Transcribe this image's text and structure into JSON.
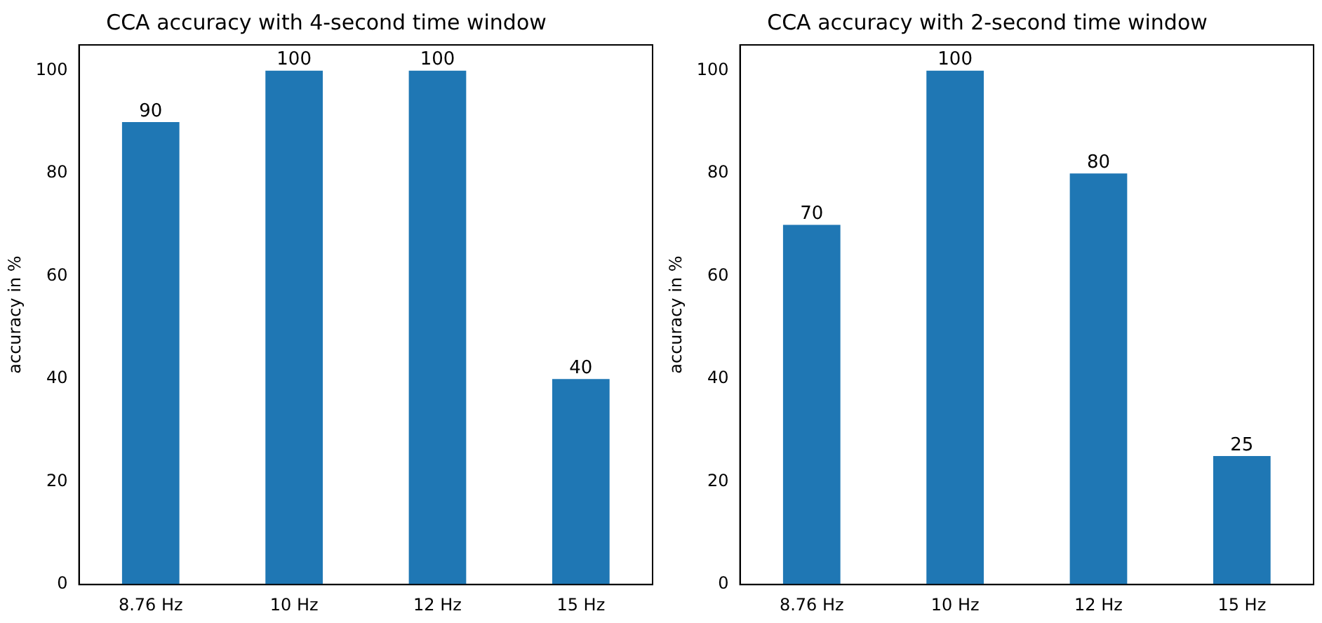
{
  "chart_data": [
    {
      "type": "bar",
      "title": "CCA accuracy with 4-second time window",
      "ylabel": "accuracy in %",
      "categories": [
        "8.76 Hz",
        "10 Hz",
        "12 Hz",
        "15 Hz"
      ],
      "values": [
        90,
        100,
        100,
        40
      ],
      "color": "#1f77b4",
      "ylim": [
        0,
        105
      ],
      "yticks": [
        0,
        20,
        40,
        60,
        80,
        100
      ],
      "grid": false,
      "legend": false,
      "data_labels": true
    },
    {
      "type": "bar",
      "title": "CCA accuracy with 2-second time window",
      "ylabel": "accuracy in %",
      "categories": [
        "8.76 Hz",
        "10 Hz",
        "12 Hz",
        "15 Hz"
      ],
      "values": [
        70,
        100,
        80,
        25
      ],
      "color": "#1f77b4",
      "ylim": [
        0,
        105
      ],
      "yticks": [
        0,
        20,
        40,
        60,
        80,
        100
      ],
      "grid": false,
      "legend": false,
      "data_labels": true
    }
  ]
}
